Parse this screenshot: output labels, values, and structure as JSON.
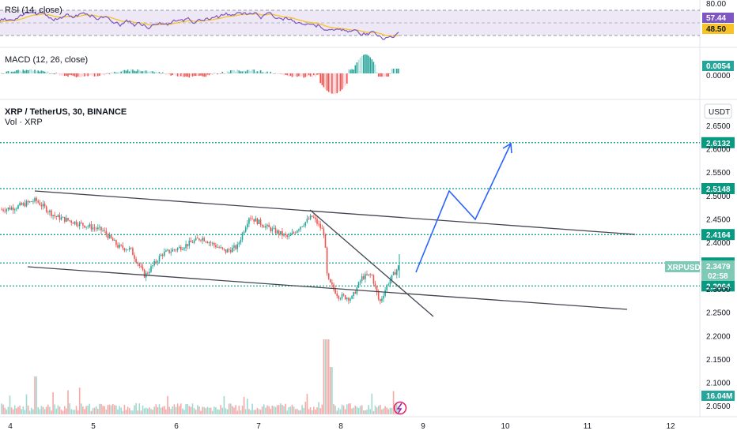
{
  "rsi": {
    "title": "RSI (14, close)",
    "axis_label_top": "80.00",
    "value_main": "57.44",
    "value_ma": "48.50",
    "colors": {
      "line": "#7e57c2",
      "ma": "#f7c325",
      "band": "#ede7f6",
      "main_tag": "#7e57c2",
      "ma_tag": "#f7c325"
    }
  },
  "macd": {
    "title": "MACD (12, 26, close)",
    "value_main": "0.0054",
    "zero_label": "0.0000",
    "colors": {
      "pos": "#26a69a",
      "neg": "#ef5350",
      "main_tag": "#26a69a"
    }
  },
  "main": {
    "title": "XRP / TetherUS, 30, BINANCE",
    "volume_label": "Vol · XRP",
    "currency_button": "USDT",
    "symbol_tag": "XRPUSDT",
    "last_price": "2.3479",
    "countdown": "02:58",
    "volume_tag": "16.04M",
    "price_levels": [
      "2.6500",
      "2.5500",
      "2.4500",
      "2.4000",
      "2.2500",
      "2.2000",
      "2.1500",
      "2.1000",
      "2.0500",
      "2.3000",
      "2.5000",
      "2.6000"
    ],
    "highlight_levels": [
      "2.6132",
      "2.5148",
      "2.4164",
      "2.3556",
      "2.3064"
    ],
    "colors": {
      "up": "#26a69a",
      "down": "#ef5350",
      "level_line": "#089981",
      "projection": "#2962ff",
      "trend": "#434651"
    }
  },
  "time_axis": {
    "labels": [
      "4",
      "5",
      "6",
      "7",
      "8",
      "9",
      "10",
      "11",
      "12"
    ]
  }
}
